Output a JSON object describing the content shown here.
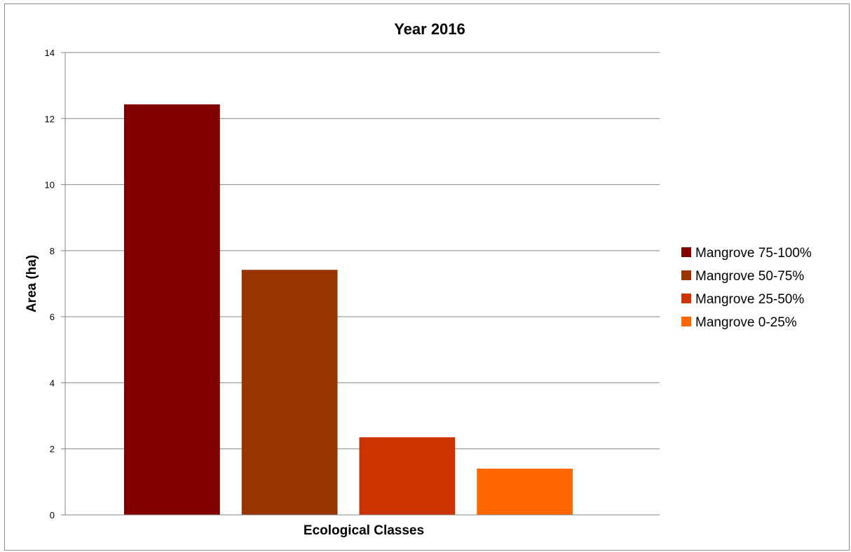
{
  "chart_data": {
    "type": "bar",
    "title": "Year 2016",
    "xlabel": "Ecological Classes",
    "ylabel": "Area (ha)",
    "ylim": [
      0,
      14
    ],
    "yticks": [
      0,
      2,
      4,
      6,
      8,
      10,
      12,
      14
    ],
    "grid": true,
    "legend_position": "right",
    "series": [
      {
        "name": "Mangrove 75-100%",
        "value": 12.43,
        "color": "#800000"
      },
      {
        "name": "Mangrove 50-75%",
        "value": 7.42,
        "color": "#993300"
      },
      {
        "name": "Mangrove 25-50%",
        "value": 2.35,
        "color": "#cc3300"
      },
      {
        "name": "Mangrove 0-25%",
        "value": 1.4,
        "color": "#ff6600"
      }
    ]
  }
}
